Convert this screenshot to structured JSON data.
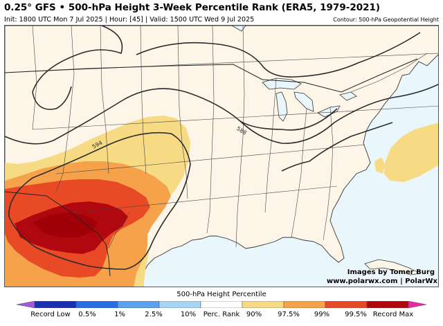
{
  "header": {
    "title": "0.25° GFS • 500-hPa Height 3-Week Percentile Rank (ERA5, 1979-2021)",
    "subtitle": "Init: 1800 UTC Mon 7 Jul 2025 | Hour: [45] | Valid: 1500 UTC Wed 9 Jul 2025",
    "contour_note": "Contour: 500-hPa Geopotential Height"
  },
  "map": {
    "contour_labels": [
      "594",
      "588"
    ],
    "colors": {
      "land": "#fdf6e8",
      "water": "#e9f6fc",
      "border": "#333333",
      "contour": "#2b2b2b"
    }
  },
  "credits": {
    "line1": "Images by Tomer Burg",
    "line2": "www.polarwx.com | PolarWx"
  },
  "legend": {
    "title": "500-hPa Height Percentile",
    "labels": [
      "Record Low",
      "0.5%",
      "1%",
      "2.5%",
      "10%",
      "Perc. Rank",
      "90%",
      "97.5%",
      "99%",
      "99.5%",
      "Record Max"
    ],
    "colors": [
      "#a05ad8",
      "#1a2fb4",
      "#2a6ee6",
      "#5aa2ee",
      "#a8d4f6",
      "#ffffff",
      "#f7da84",
      "#f5a24a",
      "#e84a26",
      "#b0080e",
      "#e82aa4"
    ]
  }
}
